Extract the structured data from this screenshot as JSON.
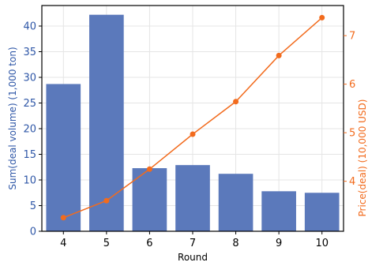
{
  "chart_data": {
    "type": "bar",
    "title": "",
    "categories": [
      "4",
      "5",
      "6",
      "7",
      "8",
      "9",
      "10"
    ],
    "xlabel": "Round",
    "series": [
      {
        "type": "bar",
        "axis": "left",
        "values": [
          28.7,
          42.2,
          12.3,
          12.9,
          11.2,
          7.8,
          7.5
        ],
        "color": "#5b79bb"
      },
      {
        "type": "line",
        "axis": "right",
        "values": [
          3.25,
          3.6,
          4.25,
          4.97,
          5.64,
          6.59,
          7.37
        ],
        "color": "#f26b1d"
      }
    ],
    "y_left": {
      "label": "Sum(deal volume) (1,000 ton)",
      "ylim": [
        0,
        44
      ],
      "ticks": [
        0,
        5,
        10,
        15,
        20,
        25,
        30,
        35,
        40
      ],
      "color": "#2f57a7"
    },
    "y_right": {
      "label": "Price(deal) (10,000 USD)",
      "ylim": [
        2.97,
        7.62
      ],
      "ticks": [
        4,
        5,
        6,
        7
      ],
      "color": "#f26b1d"
    },
    "grid": true,
    "legend": "none"
  }
}
